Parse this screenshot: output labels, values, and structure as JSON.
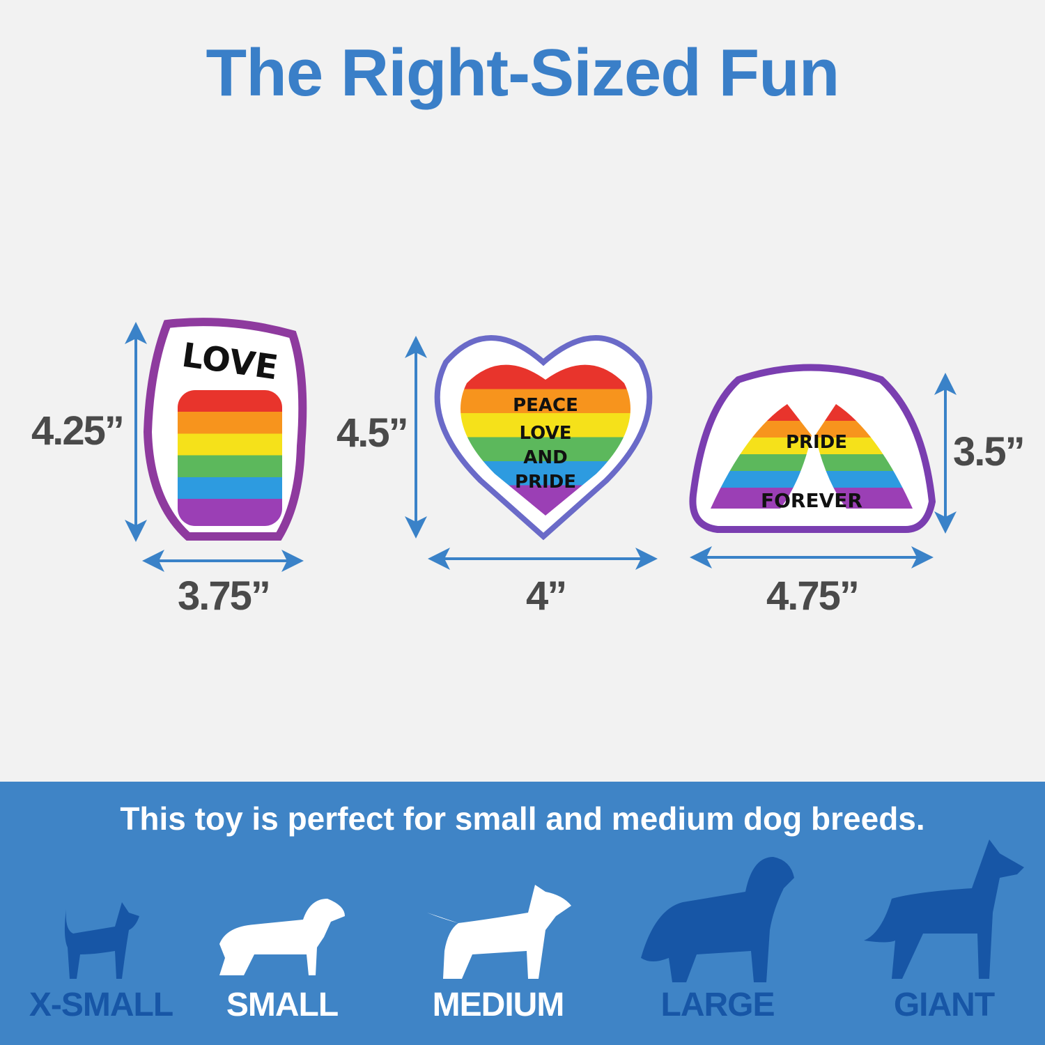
{
  "title": "The Right-Sized Fun",
  "toys": [
    {
      "name": "fist",
      "text": [
        "LOVE"
      ],
      "height": "4.25”",
      "width": "3.75”"
    },
    {
      "name": "heart",
      "text": [
        "PEACE",
        "LOVE",
        "AND",
        "PRIDE"
      ],
      "height": "4.5”",
      "width": "4”"
    },
    {
      "name": "hands",
      "text": [
        "PRIDE",
        "FOREVER"
      ],
      "height": "3.5”",
      "width": "4.75”"
    }
  ],
  "band": {
    "tagline": "This toy is perfect for small and medium dog breeds.",
    "sizes": [
      {
        "label": "X-SMALL",
        "suitable": false
      },
      {
        "label": "SMALL",
        "suitable": true
      },
      {
        "label": "MEDIUM",
        "suitable": true
      },
      {
        "label": "LARGE",
        "suitable": false
      },
      {
        "label": "GIANT",
        "suitable": false
      }
    ]
  },
  "colors": {
    "accent": "#3a7fc8",
    "band": "#3f84c6",
    "inactive": "#1756a6",
    "dimension_text": "#4a4a4a"
  }
}
